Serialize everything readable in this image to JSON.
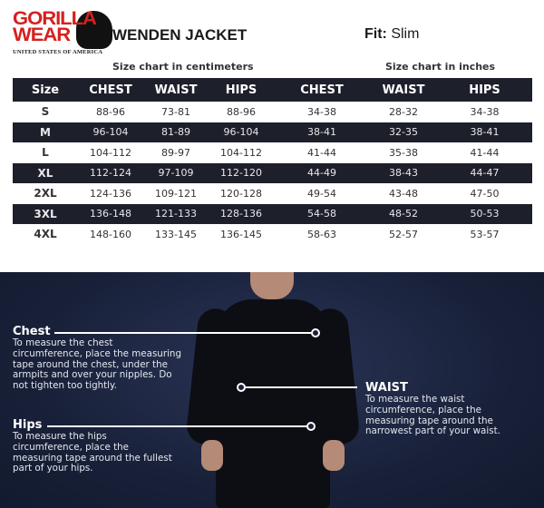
{
  "brand": {
    "line1": "GORILLA",
    "line2": "WEAR",
    "tagline": "UNITED STATES OF AMERICA",
    "accent": "#d6201f"
  },
  "title": "WENDEN JACKET",
  "fit": {
    "label": "Fit:",
    "value": "Slim"
  },
  "captions": {
    "cm": "Size chart in centimeters",
    "in": "Size chart in inches"
  },
  "headers": [
    "Size",
    "CHEST",
    "WAIST",
    "HIPS",
    "CHEST",
    "WAIST",
    "HIPS"
  ],
  "rows": [
    [
      "S",
      "88-96",
      "73-81",
      "88-96",
      "34-38",
      "28-32",
      "34-38"
    ],
    [
      "M",
      "96-104",
      "81-89",
      "96-104",
      "38-41",
      "32-35",
      "38-41"
    ],
    [
      "L",
      "104-112",
      "89-97",
      "104-112",
      "41-44",
      "35-38",
      "41-44"
    ],
    [
      "XL",
      "112-124",
      "97-109",
      "112-120",
      "44-49",
      "38-43",
      "44-47"
    ],
    [
      "2XL",
      "124-136",
      "109-121",
      "120-128",
      "49-54",
      "43-48",
      "47-50"
    ],
    [
      "3XL",
      "136-148",
      "121-133",
      "128-136",
      "54-58",
      "48-52",
      "50-53"
    ],
    [
      "4XL",
      "148-160",
      "133-145",
      "136-145",
      "58-63",
      "52-57",
      "53-57"
    ]
  ],
  "notes": {
    "chest": {
      "title": "Chest",
      "text": "To measure the chest circumference, place the measuring tape around the chest, under the armpits and over your nipples. Do not tighten too tightly."
    },
    "waist": {
      "title": "WAIST",
      "text": "To measure the waist circumference, place the measuring tape around the narrowest part of your waist."
    },
    "hips": {
      "title": "Hips",
      "text": "To measure the hips circumference, place the measuring tape around the fullest part of your hips."
    }
  }
}
